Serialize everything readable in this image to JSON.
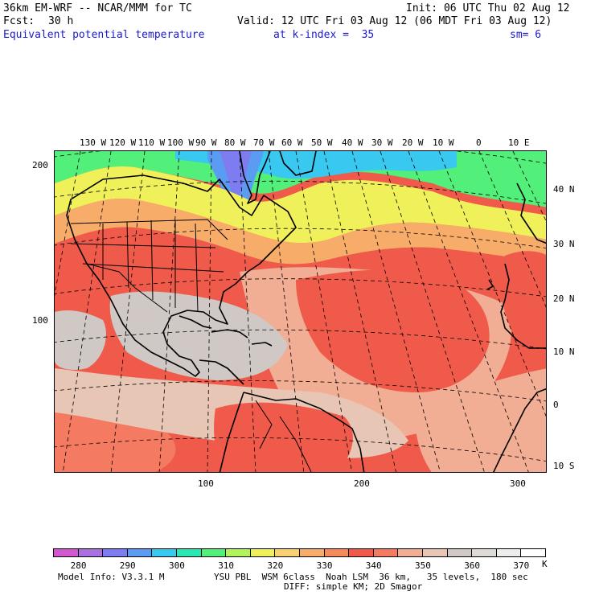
{
  "header": {
    "model": "36km EM-WRF -- NCAR/MMM for TC",
    "init": "Init: 06 UTC Thu 02 Aug 12",
    "fcst_label": "Fcst:",
    "fcst_value": "30 h",
    "valid": "Valid: 12 UTC Fri 03 Aug 12 (06 MDT Fri 03 Aug 12)",
    "field": "Equivalent potential temperature",
    "level": "at k-index =  35",
    "smooth": "sm= 6"
  },
  "map": {
    "lon_labels": [
      "130 W",
      "120 W",
      "110 W",
      "100 W",
      "90 W",
      "80 W",
      "70 W",
      "60 W",
      "50 W",
      "40 W",
      "30 W",
      "20 W",
      "10 W",
      "0",
      "10 E"
    ],
    "lat_labels": [
      "40 N",
      "30 N",
      "20 N",
      "10 N",
      "0",
      "10 S"
    ],
    "grid_y_labels": [
      "200",
      "100"
    ],
    "grid_x_labels": [
      "100",
      "200",
      "300"
    ],
    "colors": {
      "c280": "#d258d2",
      "c285": "#a870e0",
      "c290": "#7d7cf0",
      "c295": "#5a9cf2",
      "c300": "#38c8f0",
      "c305": "#2ae8b4",
      "c310": "#52f07a",
      "c315": "#b0f45a",
      "c320": "#f0f05a",
      "c325": "#f8d270",
      "c330": "#f8ac6a",
      "c335": "#f58a5a",
      "c340": "#ef5a4a",
      "c345": "#f47a62",
      "c350": "#f2ae94",
      "c355": "#e8c6b6",
      "c360": "#cfc8c4",
      "c365": "#dedad6",
      "c370": "#ededed",
      "c375": "#ffffff"
    }
  },
  "colorbar": {
    "ticks": [
      "280",
      "290",
      "300",
      "310",
      "320",
      "330",
      "340",
      "350",
      "360",
      "370"
    ],
    "unit": "K"
  },
  "footer": {
    "line1_left": "Model Info: V3.3.1 M",
    "line1_right": "YSU PBL  WSM 6class  Noah LSM  36 km,   35 levels,  180 sec",
    "line2": "DIFF: simple KM; 2D Smagor"
  }
}
